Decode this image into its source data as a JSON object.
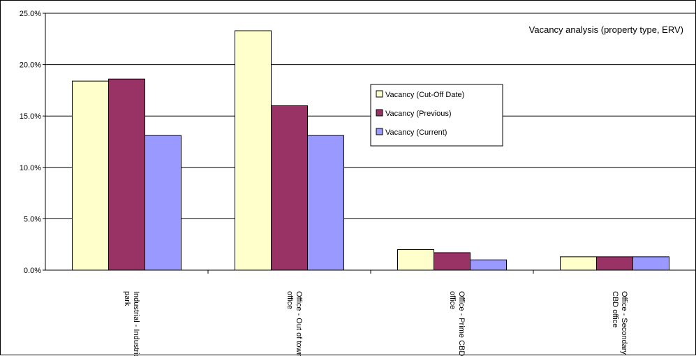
{
  "chart_data": {
    "type": "bar",
    "title": "Vacancy analysis (property type, ERV)",
    "categories": [
      [
        "Industrial - Industrial",
        "park"
      ],
      [
        "Office - Out of town",
        "office"
      ],
      [
        "Office - Prime CBD",
        "office"
      ],
      [
        "Office - Secondary",
        "CBD office"
      ]
    ],
    "series": [
      {
        "name": "Vacancy (Cut-Off Date)",
        "color": "#FFFFCC",
        "values": [
          18.4,
          23.3,
          2.0,
          1.3
        ]
      },
      {
        "name": "Vacancy (Previous)",
        "color": "#993366",
        "values": [
          18.6,
          16.0,
          1.7,
          1.3
        ]
      },
      {
        "name": "Vacancy (Current)",
        "color": "#9999FF",
        "values": [
          13.1,
          13.1,
          1.0,
          1.3
        ]
      }
    ],
    "yticks": [
      "0.0%",
      "5.0%",
      "10.0%",
      "15.0%",
      "20.0%",
      "25.0%"
    ],
    "ylim": [
      0,
      25
    ],
    "grid": true,
    "legend_position": "right"
  }
}
